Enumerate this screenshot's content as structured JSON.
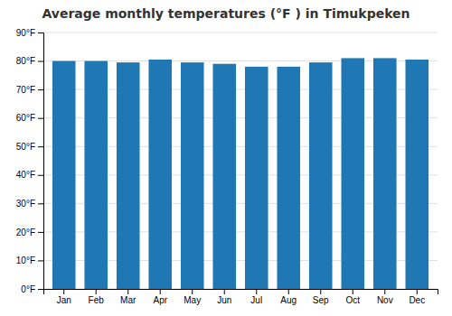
{
  "chart_data": {
    "type": "bar",
    "title": "Average monthly temperatures (°F ) in Timukpeken",
    "categories": [
      "Jan",
      "Feb",
      "Mar",
      "Apr",
      "May",
      "Jun",
      "Jul",
      "Aug",
      "Sep",
      "Oct",
      "Nov",
      "Dec"
    ],
    "values": [
      80,
      80,
      79.5,
      80.5,
      79.5,
      79,
      78,
      78,
      79.5,
      81,
      81,
      80.5
    ],
    "ylim": [
      0,
      90
    ],
    "yticks": [
      {
        "value": 0,
        "label": "0°F"
      },
      {
        "value": 10,
        "label": "10°F"
      },
      {
        "value": 20,
        "label": "20°F"
      },
      {
        "value": 30,
        "label": "30°F"
      },
      {
        "value": 40,
        "label": "40°F"
      },
      {
        "value": 50,
        "label": "50°F"
      },
      {
        "value": 60,
        "label": "60°F"
      },
      {
        "value": 70,
        "label": "70°F"
      },
      {
        "value": 80,
        "label": "80°F"
      },
      {
        "value": 90,
        "label": "90°F"
      }
    ],
    "grid": true
  }
}
